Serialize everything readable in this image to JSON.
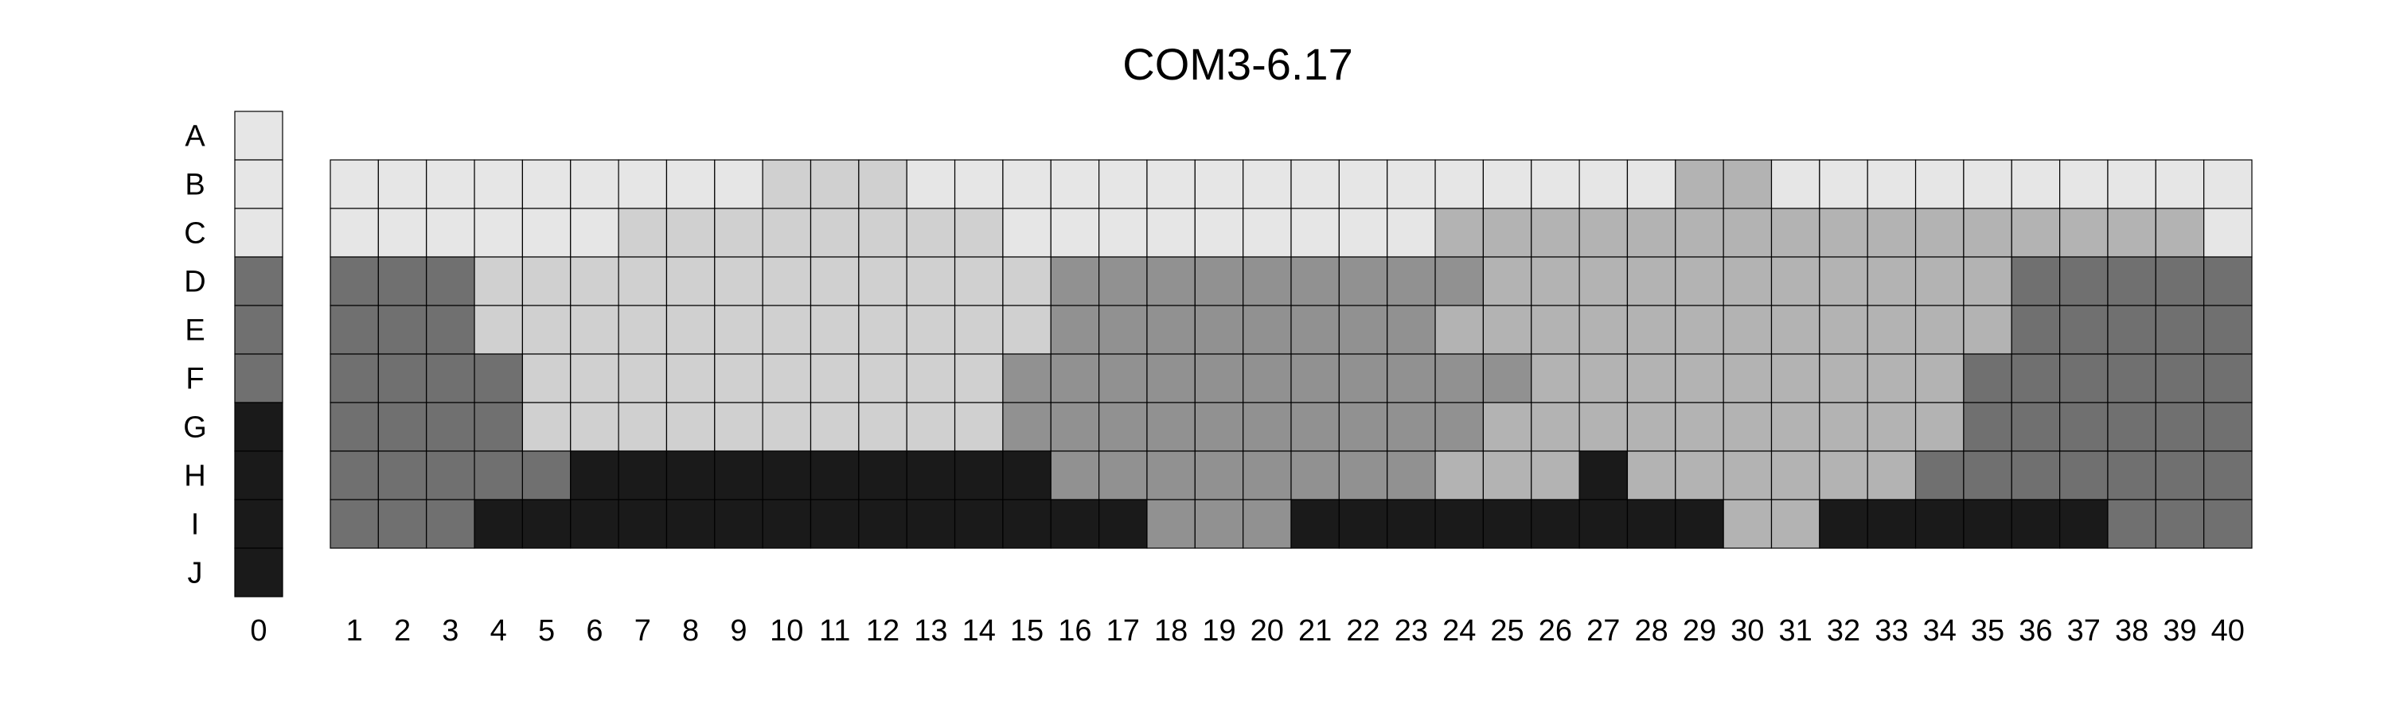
{
  "chart_data": {
    "type": "heatmap",
    "title": "COM3-6.17",
    "xlabel": "",
    "ylabel": "",
    "row_labels": [
      "A",
      "B",
      "C",
      "D",
      "E",
      "F",
      "G",
      "H",
      "I",
      "J"
    ],
    "key_column_label": "0",
    "key_column": [
      1,
      1,
      1,
      3,
      3,
      3,
      5,
      5,
      5,
      5
    ],
    "columns": [
      1,
      2,
      3,
      4,
      5,
      6,
      7,
      8,
      9,
      10,
      11,
      12,
      13,
      14,
      15,
      16,
      17,
      18,
      19,
      20,
      21,
      22,
      23,
      24,
      25,
      26,
      27,
      28,
      29,
      30,
      31,
      32,
      33,
      34,
      35,
      36,
      37,
      38,
      39,
      40
    ],
    "grid_rows": [
      "B",
      "C",
      "D",
      "E",
      "F",
      "G",
      "H",
      "I"
    ],
    "levels": {
      "1": "#e6e6e6",
      "1.5": "#d0d0d0",
      "2": "#b3b3b3",
      "2.5": "#919191",
      "3": "#707070",
      "5": "#1a1a1a"
    },
    "values": [
      [
        1,
        1,
        1,
        1,
        1,
        1,
        1,
        1,
        1,
        1.5,
        1.5,
        1.5,
        1,
        1,
        1,
        1,
        1,
        1,
        1,
        1,
        1,
        1,
        1,
        1,
        1,
        1,
        1,
        1,
        2,
        2,
        1,
        1,
        1,
        1,
        1,
        1,
        1,
        1,
        1,
        1
      ],
      [
        1,
        1,
        1,
        1,
        1,
        1,
        1.5,
        1.5,
        1.5,
        1.5,
        1.5,
        1.5,
        1.5,
        1.5,
        1,
        1,
        1,
        1,
        1,
        1,
        1,
        1,
        1,
        2,
        2,
        2,
        2,
        2,
        2,
        2,
        2,
        2,
        2,
        2,
        2,
        2,
        2,
        2,
        2,
        1
      ],
      [
        3,
        3,
        3,
        1.5,
        1.5,
        1.5,
        1.5,
        1.5,
        1.5,
        1.5,
        1.5,
        1.5,
        1.5,
        1.5,
        1.5,
        2.5,
        2.5,
        2.5,
        2.5,
        2.5,
        2.5,
        2.5,
        2.5,
        2.5,
        2,
        2,
        2,
        2,
        2,
        2,
        2,
        2,
        2,
        2,
        2,
        3,
        3,
        3,
        3,
        3
      ],
      [
        3,
        3,
        3,
        1.5,
        1.5,
        1.5,
        1.5,
        1.5,
        1.5,
        1.5,
        1.5,
        1.5,
        1.5,
        1.5,
        1.5,
        2.5,
        2.5,
        2.5,
        2.5,
        2.5,
        2.5,
        2.5,
        2.5,
        2,
        2,
        2,
        2,
        2,
        2,
        2,
        2,
        2,
        2,
        2,
        2,
        3,
        3,
        3,
        3,
        3
      ],
      [
        3,
        3,
        3,
        3,
        1.5,
        1.5,
        1.5,
        1.5,
        1.5,
        1.5,
        1.5,
        1.5,
        1.5,
        1.5,
        2.5,
        2.5,
        2.5,
        2.5,
        2.5,
        2.5,
        2.5,
        2.5,
        2.5,
        2.5,
        2.5,
        2,
        2,
        2,
        2,
        2,
        2,
        2,
        2,
        2,
        3,
        3,
        3,
        3,
        3,
        3
      ],
      [
        3,
        3,
        3,
        3,
        1.5,
        1.5,
        1.5,
        1.5,
        1.5,
        1.5,
        1.5,
        1.5,
        1.5,
        1.5,
        2.5,
        2.5,
        2.5,
        2.5,
        2.5,
        2.5,
        2.5,
        2.5,
        2.5,
        2.5,
        2,
        2,
        2,
        2,
        2,
        2,
        2,
        2,
        2,
        2,
        3,
        3,
        3,
        3,
        3,
        3
      ],
      [
        3,
        3,
        3,
        3,
        3,
        5,
        5,
        5,
        5,
        5,
        5,
        5,
        5,
        5,
        5,
        2.5,
        2.5,
        2.5,
        2.5,
        2.5,
        2.5,
        2.5,
        2.5,
        2,
        2,
        2,
        5,
        2,
        2,
        2,
        2,
        2,
        2,
        3,
        3,
        3,
        3,
        3,
        3,
        3
      ],
      [
        3,
        3,
        3,
        5,
        5,
        5,
        5,
        5,
        5,
        5,
        5,
        5,
        5,
        5,
        5,
        5,
        5,
        2.5,
        2.5,
        2.5,
        5,
        5,
        5,
        5,
        5,
        5,
        5,
        5,
        5,
        2,
        2,
        5,
        5,
        5,
        5,
        5,
        5,
        3,
        3,
        3
      ]
    ]
  }
}
